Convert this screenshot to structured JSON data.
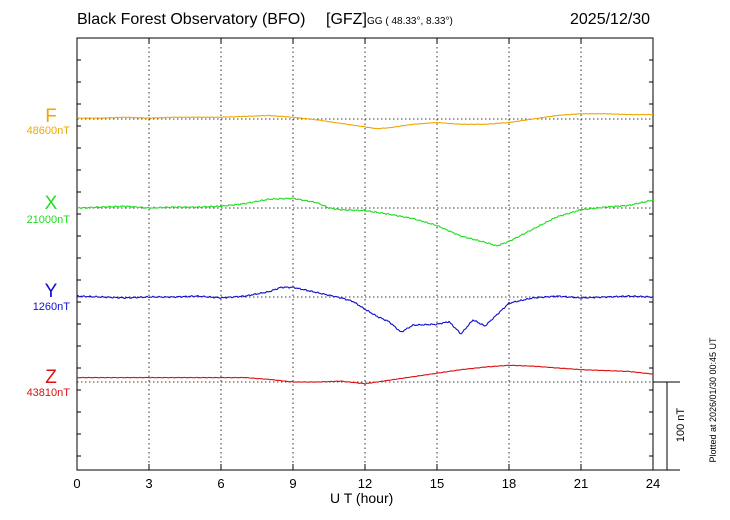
{
  "header": {
    "station": "Black Forest Observatory (BFO)",
    "institute": "[GFZ]",
    "coords": "GG ( 48.33°,   8.33°)",
    "date": "2025/12/30"
  },
  "plotted_note": "Plotted at 2026/01/30 00:45 UT",
  "chart_data": {
    "type": "line",
    "xlabel": "U T (hour)",
    "xlim": [
      0,
      24
    ],
    "xticks": [
      0,
      3,
      6,
      9,
      12,
      15,
      18,
      21,
      24
    ],
    "grid": true,
    "scale_bar": {
      "value_nT": 100,
      "label": "100 nT"
    },
    "series": [
      {
        "name": "F",
        "baseline_label": "48600nT",
        "baseline_nT": 48600,
        "color": "#f0a800",
        "x": [
          0,
          1,
          2,
          3,
          4,
          5,
          6,
          7,
          8,
          9,
          10,
          11,
          12,
          12.5,
          13,
          14,
          15,
          16,
          17,
          18,
          19,
          20,
          21,
          22,
          23,
          24
        ],
        "y": [
          48601,
          48601,
          48602,
          48601,
          48602,
          48602,
          48602,
          48603,
          48604,
          48602,
          48599,
          48595,
          48591,
          48589,
          48590,
          48594,
          48596,
          48594,
          48594,
          48596,
          48600,
          48604,
          48606,
          48606,
          48605,
          48605
        ]
      },
      {
        "name": "X",
        "baseline_label": "21000nT",
        "baseline_nT": 21000,
        "color": "#22dd22",
        "x": [
          0,
          1,
          2,
          3,
          4,
          5,
          6,
          7,
          8,
          9,
          10,
          10.5,
          11,
          12,
          13,
          14,
          15,
          16,
          17,
          17.5,
          18,
          19,
          20,
          21,
          22,
          23,
          24
        ],
        "y": [
          21000,
          21001,
          21002,
          21000,
          21001,
          21001,
          21002,
          21005,
          21010,
          21011,
          21006,
          21000,
          20998,
          20997,
          20993,
          20988,
          20980,
          20968,
          20961,
          20957,
          20962,
          20976,
          20990,
          20998,
          21001,
          21003,
          21009
        ]
      },
      {
        "name": "Y",
        "baseline_label": "1260nT",
        "baseline_nT": 1260,
        "color": "#1010cc",
        "x": [
          0,
          1,
          2,
          3,
          4,
          5,
          6,
          7,
          8,
          8.5,
          9,
          10,
          11,
          11.5,
          12,
          12.5,
          13,
          13.5,
          14,
          15,
          15.5,
          16,
          16.5,
          17,
          17.5,
          18,
          19,
          20,
          21,
          22,
          23,
          24
        ],
        "y": [
          1261,
          1260,
          1259,
          1260,
          1260,
          1261,
          1259,
          1261,
          1266,
          1271,
          1271,
          1265,
          1259,
          1255,
          1246,
          1238,
          1232,
          1220,
          1228,
          1229,
          1232,
          1218,
          1234,
          1227,
          1240,
          1253,
          1259,
          1261,
          1259,
          1260,
          1261,
          1260
        ]
      },
      {
        "name": "Z",
        "baseline_label": "43810nT",
        "baseline_nT": 43810,
        "color": "#dd1111",
        "x": [
          0,
          1,
          2,
          3,
          4,
          5,
          6,
          7,
          8,
          9,
          10,
          11,
          12,
          13,
          14,
          15,
          16,
          17,
          18,
          19,
          20,
          21,
          22,
          23,
          24
        ],
        "y": [
          43815,
          43815,
          43815,
          43815,
          43815,
          43815,
          43815,
          43815,
          43813,
          43810,
          43810,
          43811,
          43808,
          43812,
          43816,
          43820,
          43824,
          43827,
          43829,
          43828,
          43826,
          43824,
          43823,
          43822,
          43819
        ]
      }
    ]
  }
}
